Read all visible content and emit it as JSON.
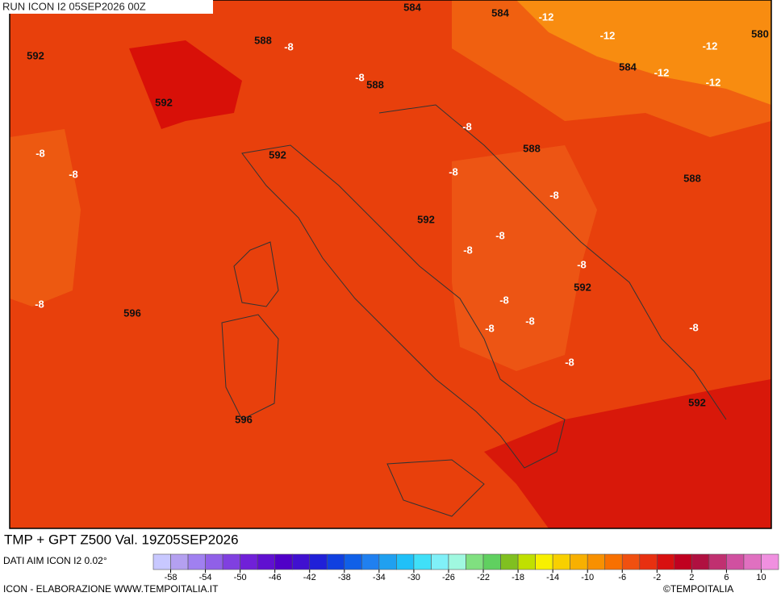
{
  "header": {
    "run": "RUN ICON I2 05SEP2026 00Z"
  },
  "map": {
    "gpt_labels": [
      584,
      584,
      580,
      588,
      592,
      588,
      584,
      592,
      588,
      592,
      588,
      592,
      592,
      596,
      592,
      596
    ],
    "tmp_labels": [
      -12,
      -12,
      -12,
      -12,
      -12,
      -8,
      -8,
      -8,
      -8,
      -8,
      -8,
      -8,
      -8,
      -8,
      -8,
      -8,
      -8,
      -8,
      -8,
      -8,
      -8
    ]
  },
  "footer": {
    "title": "TMP + GPT Z500 Val. 19Z05SEP2026",
    "source": "DATI AIM ICON I2 0.02°",
    "credit": "ICON - ELABORAZIONE WWW.TEMPOITALIA.IT",
    "copyright": "©TEMPOITALIA"
  },
  "colorbar": {
    "range": [
      -60,
      12
    ],
    "ticks": [
      -58,
      -54,
      -50,
      -46,
      -42,
      -38,
      -34,
      -30,
      -26,
      -22,
      -18,
      -14,
      -10,
      -6,
      -2,
      2,
      6,
      10
    ],
    "colors": [
      "#c8c8ff",
      "#b4a0f0",
      "#a080f0",
      "#9060e8",
      "#8040e0",
      "#7020d8",
      "#6010d0",
      "#5000c8",
      "#4010d0",
      "#2020d8",
      "#1040e0",
      "#1060e8",
      "#2080f0",
      "#20a0f0",
      "#20c0f8",
      "#40e0f8",
      "#80f0f8",
      "#a0f8e0",
      "#80e080",
      "#60d060",
      "#80c020",
      "#c0e000",
      "#f8f000",
      "#f8d000",
      "#f8b000",
      "#f89000",
      "#f87000",
      "#f05010",
      "#e83010",
      "#d81010",
      "#c00020",
      "#b01040",
      "#c03070",
      "#d050a0",
      "#e070c0",
      "#f090e0"
    ]
  }
}
